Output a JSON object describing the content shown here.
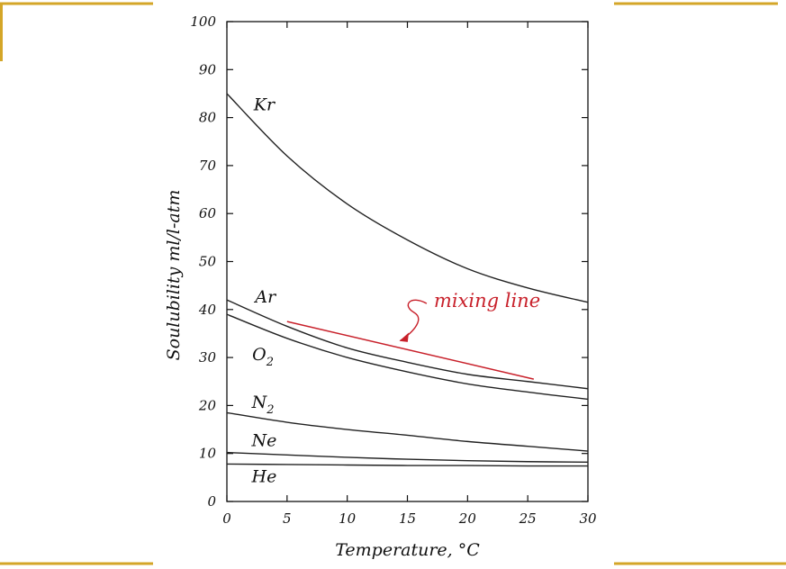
{
  "colors": {
    "frame_accent": "#d4a628",
    "curve": "#222222",
    "mixing": "#c8202a",
    "background": "#ffffff"
  },
  "chart_data": {
    "type": "line",
    "title": "",
    "xlabel": "Temperature, °C",
    "ylabel": "Soulubility ml/l-atm",
    "xlim": [
      0,
      30
    ],
    "ylim": [
      0,
      100
    ],
    "xticks": [
      0,
      5,
      10,
      15,
      20,
      25,
      30
    ],
    "yticks": [
      0,
      10,
      20,
      30,
      40,
      50,
      60,
      70,
      80,
      90,
      100
    ],
    "grid": false,
    "series": [
      {
        "name": "Kr",
        "label": "Kr",
        "label_sub": "",
        "x": [
          0,
          5,
          10,
          15,
          20,
          25,
          30
        ],
        "y": [
          85.0,
          72.0,
          62.0,
          54.5,
          48.5,
          44.5,
          41.5
        ]
      },
      {
        "name": "Ar",
        "label": "Ar",
        "label_sub": "",
        "x": [
          0,
          5,
          10,
          15,
          20,
          25,
          30
        ],
        "y": [
          42.0,
          36.5,
          32.0,
          29.0,
          26.5,
          25.0,
          23.5
        ]
      },
      {
        "name": "O2",
        "label": "O",
        "label_sub": "2",
        "x": [
          0,
          5,
          10,
          15,
          20,
          25,
          30
        ],
        "y": [
          39.0,
          34.0,
          30.0,
          27.0,
          24.5,
          22.8,
          21.3
        ]
      },
      {
        "name": "N2",
        "label": "N",
        "label_sub": "2",
        "x": [
          0,
          5,
          10,
          15,
          20,
          25,
          30
        ],
        "y": [
          18.5,
          16.5,
          15.0,
          13.8,
          12.5,
          11.5,
          10.5
        ]
      },
      {
        "name": "Ne",
        "label": "Ne",
        "label_sub": "",
        "x": [
          0,
          5,
          10,
          15,
          20,
          25,
          30
        ],
        "y": [
          10.2,
          9.7,
          9.2,
          8.8,
          8.5,
          8.3,
          8.2
        ]
      },
      {
        "name": "He",
        "label": "He",
        "label_sub": "",
        "x": [
          0,
          5,
          10,
          15,
          20,
          25,
          30
        ],
        "y": [
          7.8,
          7.7,
          7.6,
          7.5,
          7.5,
          7.4,
          7.4
        ]
      }
    ],
    "label_positions": [
      {
        "series": "Kr",
        "x": 3.1,
        "y": 81.5
      },
      {
        "series": "Ar",
        "x": 3.2,
        "y": 41.5
      },
      {
        "series": "O2",
        "x": 3.0,
        "y": 29.5
      },
      {
        "series": "N2",
        "x": 3.0,
        "y": 19.5
      },
      {
        "series": "Ne",
        "x": 3.1,
        "y": 11.5
      },
      {
        "series": "He",
        "x": 3.1,
        "y": 4.0
      }
    ],
    "mixing_line": {
      "label": "mixing line",
      "x": [
        5.0,
        25.5
      ],
      "y": [
        37.5,
        25.5
      ],
      "label_x": 17.2,
      "label_y": 40.5,
      "arrow_tip_x": 14.4,
      "arrow_tip_y": 33.5
    }
  }
}
